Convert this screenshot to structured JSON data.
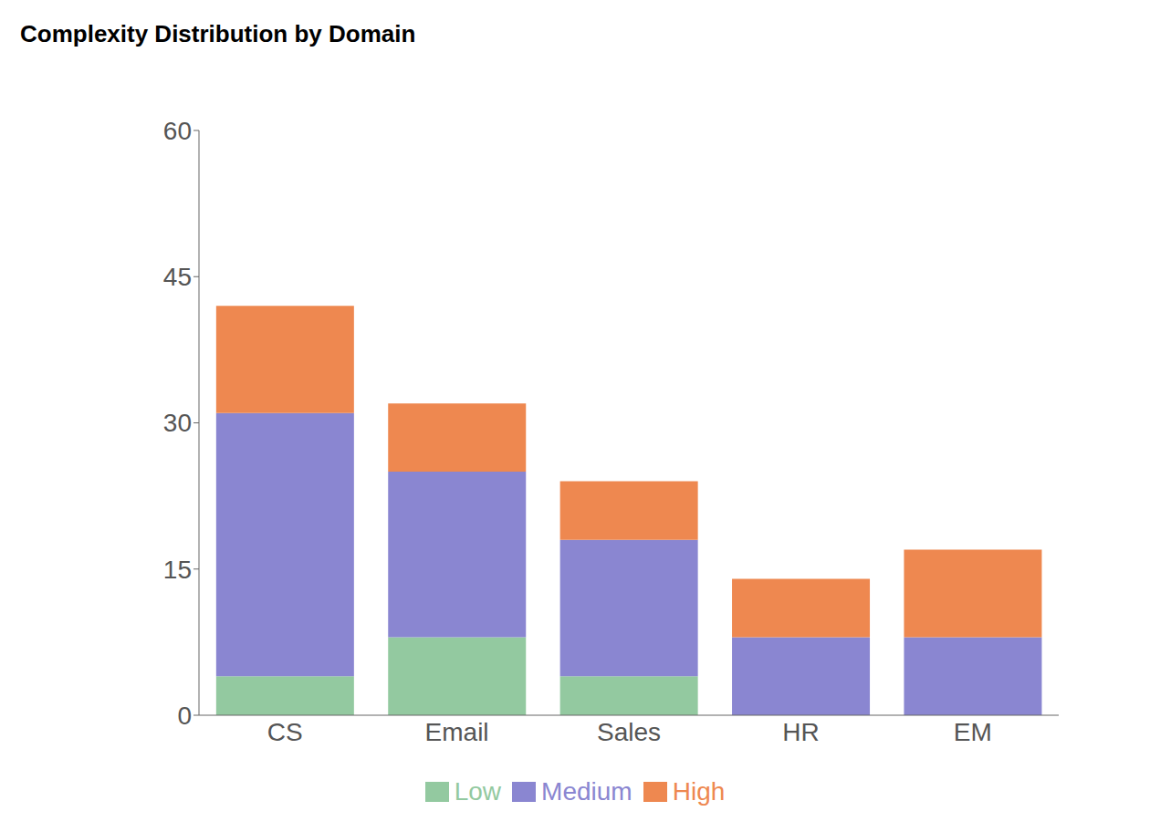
{
  "chart_data": {
    "type": "bar",
    "title": "Complexity Distribution by Domain",
    "categories": [
      "CS",
      "Email",
      "Sales",
      "HR",
      "EM"
    ],
    "series": [
      {
        "name": "Low",
        "color": "#93c9a0",
        "values": [
          4,
          8,
          4,
          0,
          0
        ]
      },
      {
        "name": "Medium",
        "color": "#8a86d1",
        "values": [
          27,
          17,
          14,
          8,
          8
        ]
      },
      {
        "name": "High",
        "color": "#ee8850",
        "values": [
          11,
          7,
          6,
          6,
          9
        ]
      }
    ],
    "stacked": true,
    "ylim": [
      0,
      60
    ],
    "yticks": [
      0,
      15,
      30,
      45,
      60
    ],
    "grid": false,
    "legend": "bottom"
  }
}
